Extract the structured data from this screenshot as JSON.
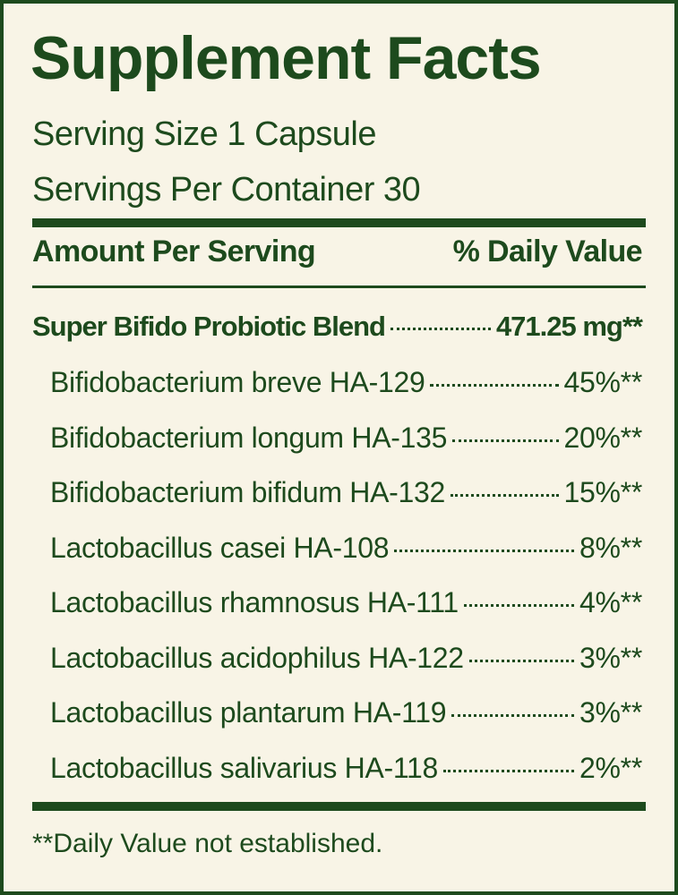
{
  "title": "Supplement Facts",
  "serving_size": "Serving Size 1 Capsule",
  "servings_per_container": "Servings Per Container 30",
  "header": {
    "left": "Amount Per Serving",
    "right": "% Daily Value"
  },
  "blend": {
    "name": "Super Bifido Probiotic Blend",
    "amount": "471.25 mg**"
  },
  "ingredients": [
    {
      "name": "Bifidobacterium breve HA-129",
      "value": "45%**"
    },
    {
      "name": "Bifidobacterium longum HA-135",
      "value": "20%**"
    },
    {
      "name": "Bifidobacterium bifidum HA-132",
      "value": "15%**"
    },
    {
      "name": "Lactobacillus casei HA-108",
      "value": "8%**"
    },
    {
      "name": "Lactobacillus rhamnosus HA-111",
      "value": "4%**"
    },
    {
      "name": "Lactobacillus acidophilus HA-122",
      "value": "3%**"
    },
    {
      "name": "Lactobacillus plantarum HA-119",
      "value": "3%**"
    },
    {
      "name": "Lactobacillus salivarius HA-118",
      "value": "2%**"
    }
  ],
  "footnote": "**Daily Value not established."
}
